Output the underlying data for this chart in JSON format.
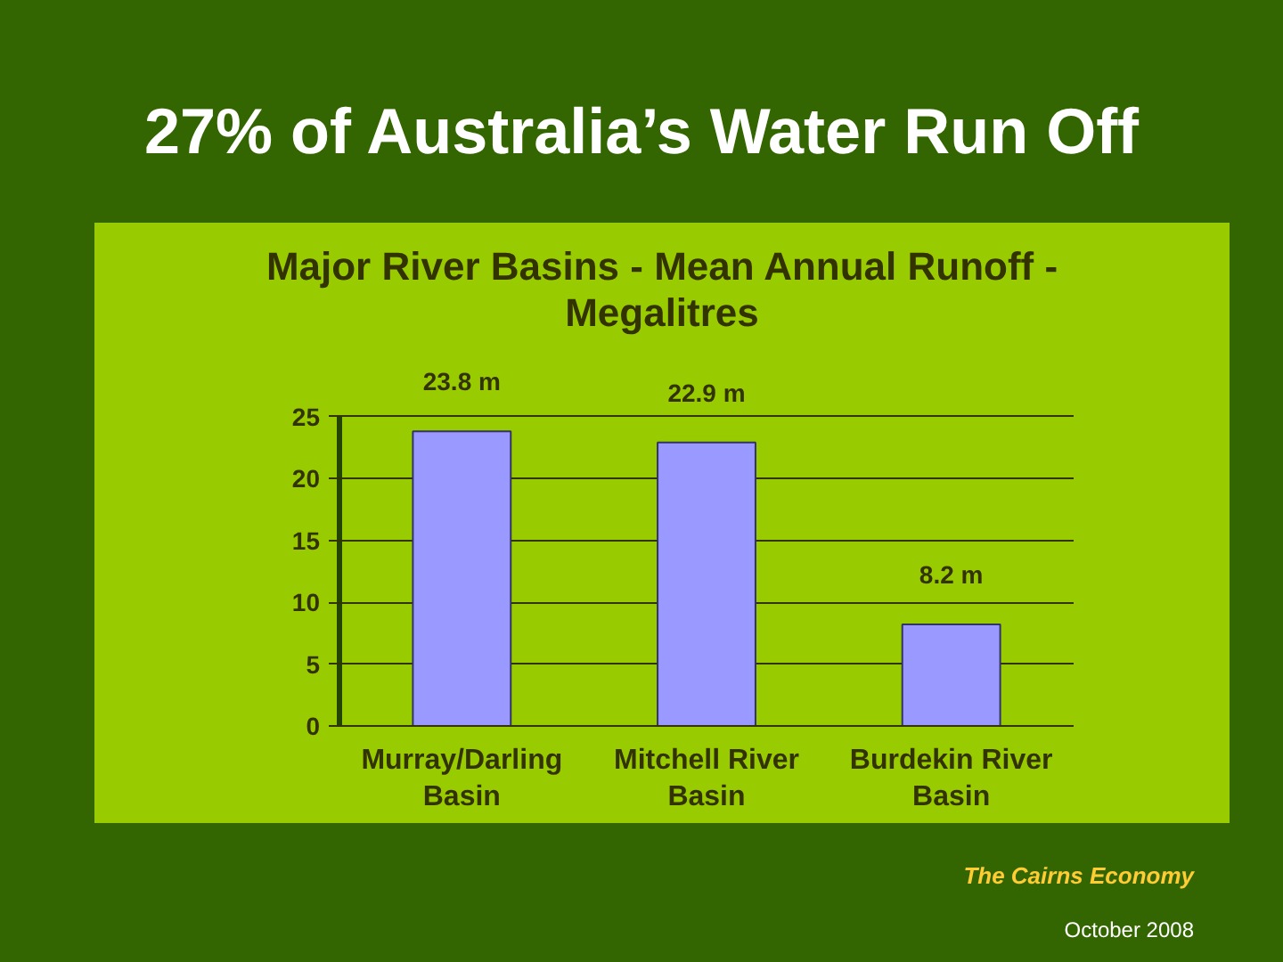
{
  "chart_data": {
    "type": "bar",
    "title": "27% of Australia’s Water Run Off",
    "subtitle": "Major River Basins - Mean Annual Runoff - Megalitres",
    "categories": [
      "Murray/Darling Basin",
      "Mitchell River Basin",
      "Burdekin River Basin"
    ],
    "values": [
      23.8,
      22.9,
      8.2
    ],
    "value_labels": [
      "23.8 m",
      "22.9 m",
      "8.2 m"
    ],
    "color": "#9999ff",
    "ylim": [
      0,
      25
    ],
    "yticks": [
      0,
      5,
      10,
      15,
      20,
      25
    ],
    "grid": "y",
    "annotations": [
      "The Cairns Economy",
      "October 2008"
    ]
  }
}
